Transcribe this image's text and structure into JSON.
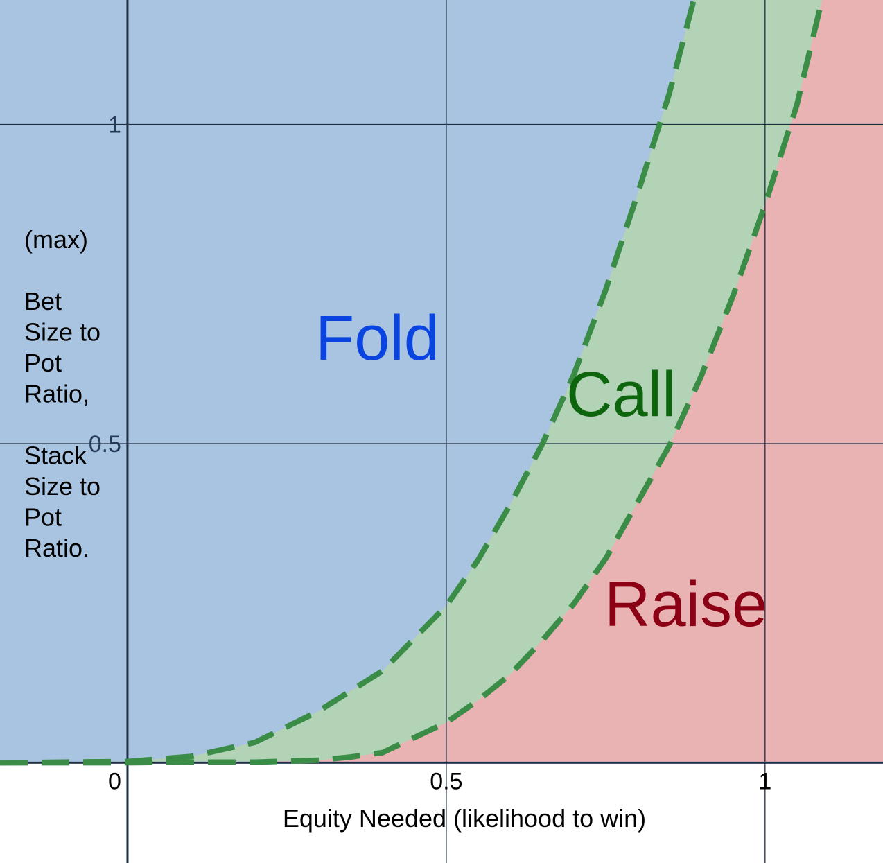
{
  "chart_data": {
    "type": "area",
    "title": "",
    "xlabel": "Equity Needed (likelihood to win)",
    "ylabel_lines": [
      "(max)",
      "",
      "Bet",
      "Size to",
      "Pot",
      "Ratio,",
      "",
      "Stack",
      "Size to",
      "Pot",
      "Ratio."
    ],
    "xlim": [
      -0.2,
      1.185
    ],
    "ylim": [
      -0.157,
      1.195
    ],
    "x_ticks": [
      {
        "value": 0,
        "label": "0"
      },
      {
        "value": 0.5,
        "label": "0.5"
      },
      {
        "value": 1,
        "label": "1"
      }
    ],
    "y_ticks": [
      {
        "value": 0.5,
        "label": "0.5"
      },
      {
        "value": 1,
        "label": "1"
      }
    ],
    "grid": true,
    "series": [
      {
        "role": "upper-boundary",
        "x": [
          -0.2,
          0,
          0.1,
          0.2,
          0.3,
          0.4,
          0.5,
          0.55,
          0.6,
          0.65,
          0.7,
          0.75,
          0.8,
          0.85,
          0.9
        ],
        "y": [
          0,
          0.002,
          0.01,
          0.032,
          0.081,
          0.144,
          0.246,
          0.318,
          0.404,
          0.498,
          0.608,
          0.741,
          0.891,
          1.049,
          1.24
        ]
      },
      {
        "role": "lower-boundary",
        "x": [
          -0.2,
          0,
          0.1,
          0.2,
          0.3,
          0.35,
          0.4,
          0.5,
          0.55,
          0.6,
          0.65,
          0.7,
          0.75,
          0.8,
          0.85,
          0.9,
          0.95,
          1.0,
          1.05,
          1.1
        ],
        "y": [
          0,
          0,
          0.001,
          0.001,
          0.004,
          0.009,
          0.016,
          0.063,
          0.098,
          0.138,
          0.191,
          0.249,
          0.32,
          0.408,
          0.497,
          0.606,
          0.732,
          0.874,
          1.031,
          1.24
        ]
      }
    ],
    "regions": [
      {
        "label": "Fold",
        "color": "#0a44e0",
        "fill": "#a9c4e0"
      },
      {
        "label": "Call",
        "color": "#0d650d",
        "fill": "#b2d3b6"
      },
      {
        "label": "Raise",
        "color": "#8b0015",
        "fill": "#e9b3b4"
      }
    ],
    "boundary_color": "#3a8c46"
  }
}
